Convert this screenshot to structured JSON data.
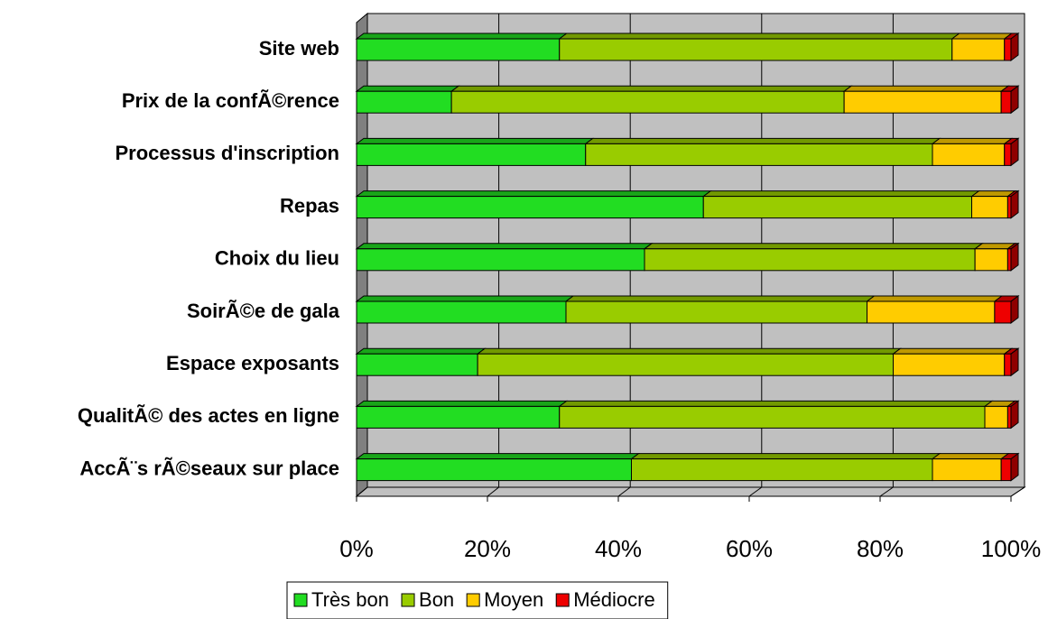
{
  "chart_data": {
    "type": "stacked-bar-horizontal",
    "categories": [
      "Site web",
      "Prix de la confÃ©rence",
      "Processus d'inscription",
      "Repas",
      "Choix du lieu",
      "SoirÃ©e de gala",
      "Espace exposants",
      "QualitÃ© des actes en ligne",
      "AccÃ¨s rÃ©seaux sur place"
    ],
    "series": [
      {
        "name": "Très bon",
        "color": "#22dd22",
        "values": [
          31,
          14.5,
          35,
          53,
          44,
          32,
          18.5,
          31,
          42
        ]
      },
      {
        "name": "Bon",
        "color": "#99cc00",
        "values": [
          60,
          60,
          53,
          41,
          50.5,
          46,
          63.5,
          65,
          46
        ]
      },
      {
        "name": "Moyen",
        "color": "#ffcc00",
        "values": [
          8,
          24,
          11,
          5.5,
          5,
          19.5,
          17,
          3.5,
          10.5
        ]
      },
      {
        "name": "Médiocre",
        "color": "#ee0000",
        "values": [
          1,
          1.5,
          1,
          0.5,
          0.5,
          2.5,
          1,
          0.5,
          1.5
        ]
      }
    ],
    "xlim": [
      0,
      100
    ],
    "xticks": [
      {
        "value": 0,
        "label": "0%"
      },
      {
        "value": 20,
        "label": "20%"
      },
      {
        "value": 40,
        "label": "40%"
      },
      {
        "value": 60,
        "label": "60%"
      },
      {
        "value": 80,
        "label": "80%"
      },
      {
        "value": 100,
        "label": "100%"
      }
    ],
    "grid": true,
    "legend": "bottom"
  }
}
